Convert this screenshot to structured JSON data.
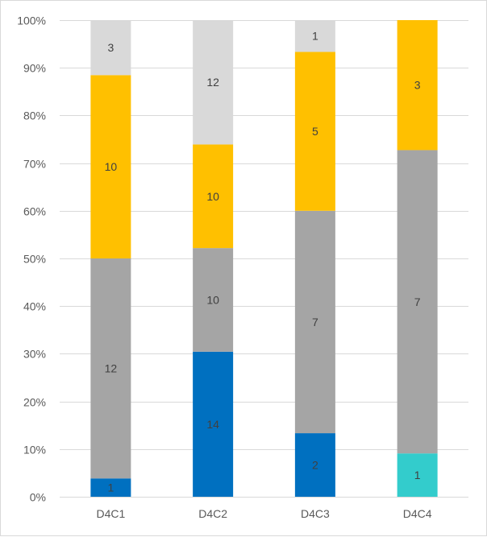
{
  "chart_data": {
    "type": "bar",
    "stacking": "percent",
    "title": "",
    "xlabel": "",
    "ylabel": "",
    "categories": [
      "D4C1",
      "D4C2",
      "D4C3",
      "D4C4"
    ],
    "ylim": [
      0,
      100
    ],
    "yticks": [
      "0%",
      "10%",
      "20%",
      "30%",
      "40%",
      "50%",
      "60%",
      "70%",
      "80%",
      "90%",
      "100%"
    ],
    "grid": true,
    "legend": "none",
    "series": [
      {
        "color": "#0070c0",
        "values": [
          1,
          14,
          2,
          0
        ]
      },
      {
        "color": "#33cccc",
        "values": [
          0,
          0,
          0,
          1
        ]
      },
      {
        "color": "#a5a5a5",
        "values": [
          12,
          10,
          7,
          7
        ]
      },
      {
        "color": "#ffc000",
        "values": [
          10,
          10,
          5,
          3
        ]
      },
      {
        "color": "#d9d9d9",
        "values": [
          3,
          12,
          1,
          0
        ]
      }
    ]
  }
}
